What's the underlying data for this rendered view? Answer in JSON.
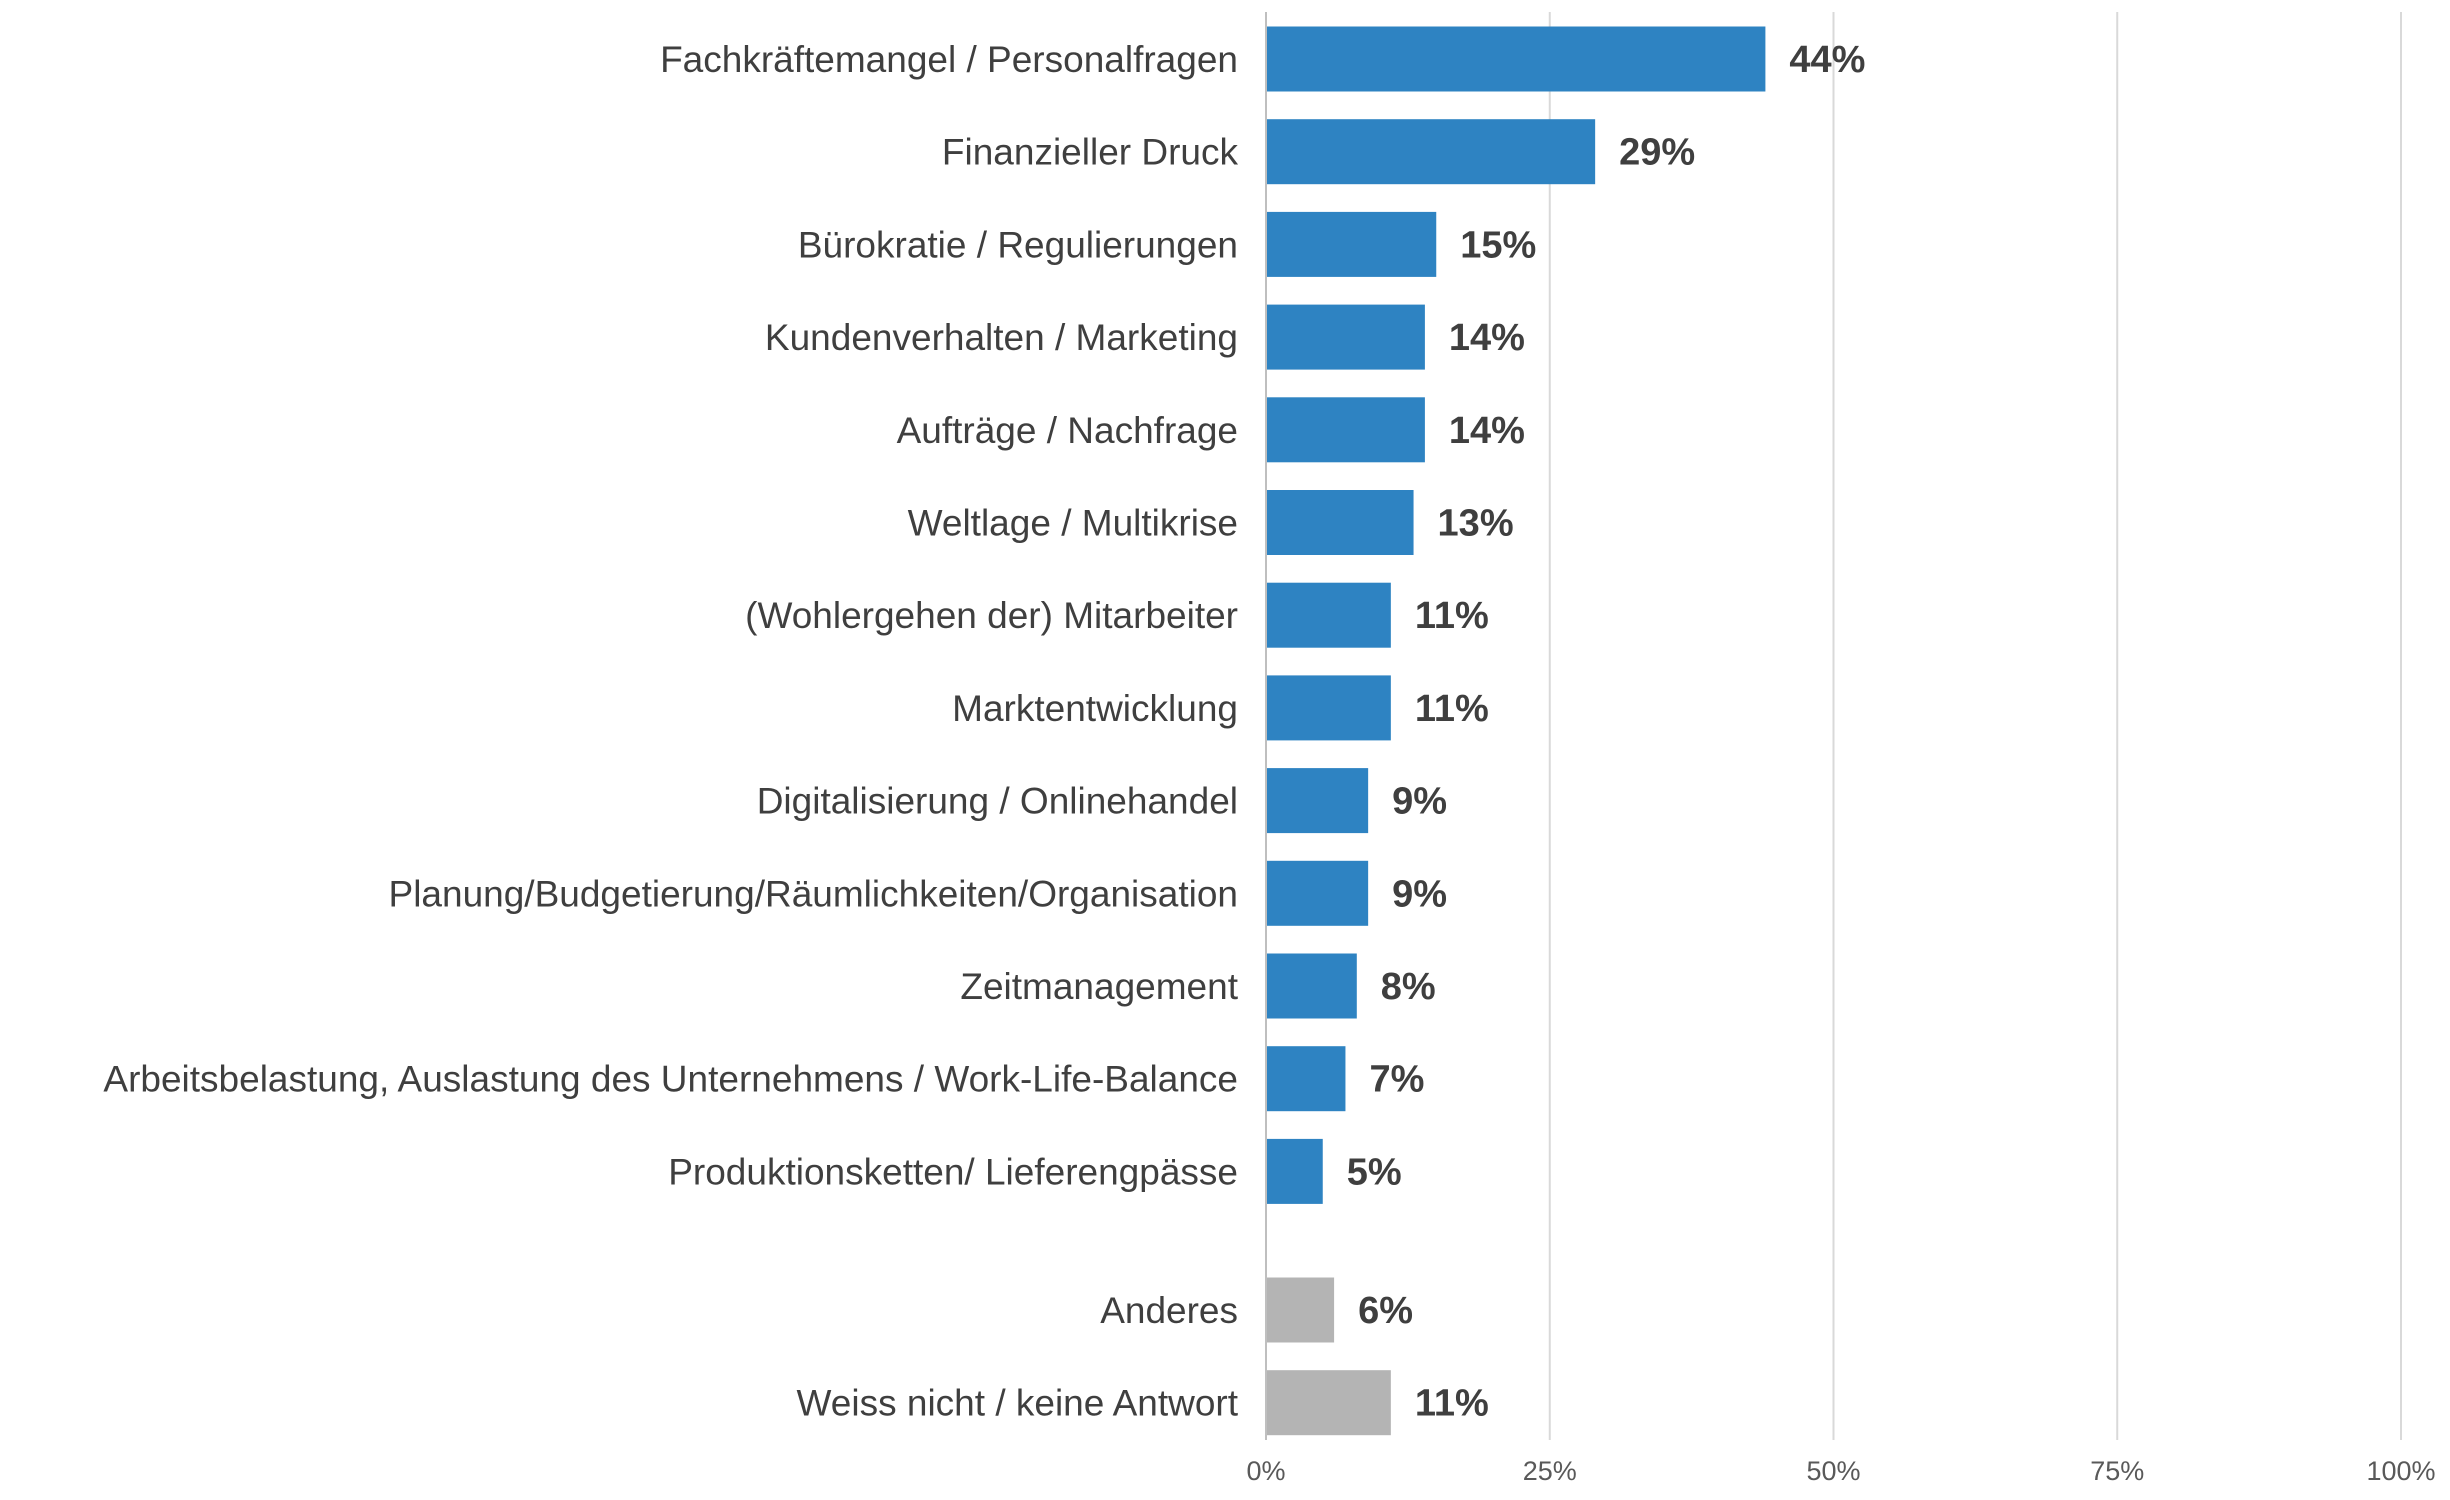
{
  "chart_data": {
    "type": "bar",
    "orientation": "horizontal",
    "categories": [
      "Fachkräftemangel / Personalfragen",
      "Finanzieller Druck",
      "Bürokratie / Regulierungen",
      "Kundenverhalten / Marketing",
      "Aufträge / Nachfrage",
      "Weltlage / Multikrise",
      "(Wohlergehen der) Mitarbeiter",
      "Marktentwicklung",
      "Digitalisierung / Onlinehandel",
      "Planung/Budgetierung/Räumlichkeiten/Organisation",
      "Zeitmanagement",
      "Arbeitsbelastung, Auslastung des Unternehmens / Work-Life-Balance",
      "Produktionsketten/ Lieferengpässe",
      "Anderes",
      "Weiss nicht / keine Antwort"
    ],
    "values": [
      44,
      29,
      15,
      14,
      14,
      13,
      11,
      11,
      9,
      9,
      8,
      7,
      5,
      6,
      11
    ],
    "value_labels": [
      "44%",
      "29%",
      "15%",
      "14%",
      "14%",
      "13%",
      "11%",
      "11%",
      "9%",
      "9%",
      "8%",
      "7%",
      "5%",
      "6%",
      "11%"
    ],
    "groups": [
      "main",
      "main",
      "main",
      "main",
      "main",
      "main",
      "main",
      "main",
      "main",
      "main",
      "main",
      "main",
      "main",
      "other",
      "other"
    ],
    "colors": {
      "main": "#2e83c2",
      "other": "#b4b4b4",
      "text": "#3f3f3f",
      "grid": "#d9d9d9"
    },
    "xlim": [
      0,
      100
    ],
    "x_ticks": [
      0,
      25,
      50,
      75,
      100
    ],
    "x_tick_labels": [
      "0%",
      "25%",
      "50%",
      "75%",
      "100%"
    ],
    "grid": true,
    "legend": "none"
  }
}
